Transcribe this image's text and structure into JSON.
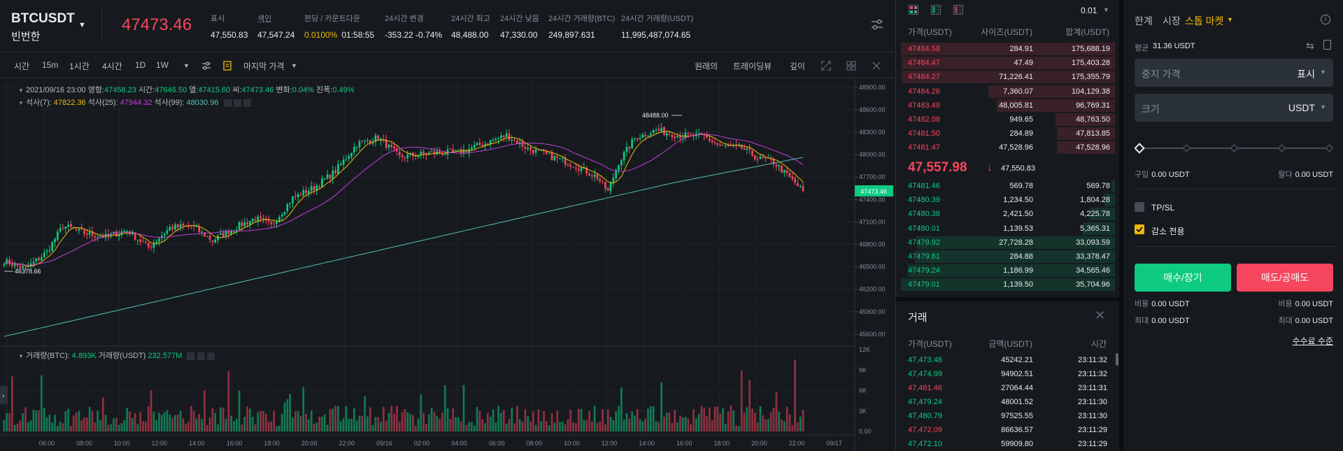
{
  "header": {
    "symbol": "BTCUSDT",
    "symbol_sub": "빈번한",
    "last_price": "47473.46",
    "stats": [
      {
        "label": "표시",
        "value": "47,550.83"
      },
      {
        "label": "색인",
        "value": "47,547.24"
      },
      {
        "label": "펀딩 / 카운트다운",
        "value": "0.0100%",
        "value2": "01:58:55"
      },
      {
        "label": "24시간 변경",
        "value": "-353.22 -0.74%"
      },
      {
        "label": "24시간 최고",
        "value": "48,488.00"
      },
      {
        "label": "24시간 낮음",
        "value": "47,330.00"
      },
      {
        "label": "24시간 거래량(BTC)",
        "value": "249,897.631"
      },
      {
        "label": "24시간 거래량(USDT)",
        "value": "11,995,487,074.65"
      }
    ]
  },
  "toolbar": {
    "intervals": [
      "시간",
      "15m",
      "1시간",
      "4시간",
      "1D",
      "1W"
    ],
    "price_type": "마지막 가격",
    "views": [
      "원래의",
      "트레이딩뷰",
      "깊이"
    ]
  },
  "chart_info": {
    "ohlc_label": "2021/09/16 23:00",
    "open_label": "영형:",
    "open": "47458.23",
    "high_label": "시간:",
    "high": "47646.50",
    "low_label": "열:",
    "low": "47415.60",
    "close_label": "씨:",
    "close": "47473.46",
    "change_label": "변화:",
    "change": "0.04%",
    "amp_label": "진폭:",
    "amp": "0.49%",
    "ma7_label": "석사(7):",
    "ma7": "47822.36",
    "ma25_label": "석사(25):",
    "ma25": "47944.32",
    "ma99_label": "석사(99):",
    "ma99": "48030.96",
    "vol_btc_label": "거래량(BTC):",
    "vol_btc": "4.893K",
    "vol_usdt_label": "거래량(USDT)",
    "vol_usdt": "232.577M",
    "max_label": "48488.00",
    "min_label": "46378.66",
    "price_tag": "47473.46"
  },
  "chart_data": {
    "type": "candlestick",
    "y_ticks": [
      "48900.00",
      "48600.00",
      "48300.00",
      "48000.00",
      "47700.00",
      "47400.00",
      "47100.00",
      "46800.00",
      "46500.00",
      "46200.00",
      "45900.00",
      "45600.00"
    ],
    "ylim": [
      45440,
      49020
    ],
    "vol_ticks": [
      "12K",
      "9K",
      "6K",
      "3K",
      "0.00"
    ],
    "vol_ylim": [
      0,
      12000
    ],
    "x_ticks": [
      "06:00",
      "08:00",
      "10:00",
      "12:00",
      "14:00",
      "16:00",
      "18:00",
      "20:00",
      "22:00",
      "09/16",
      "02:00",
      "04:00",
      "06:00",
      "08:00",
      "10:00",
      "12:00",
      "14:00",
      "16:00",
      "18:00",
      "20:00",
      "22:00",
      "09/17"
    ],
    "ma_colors": {
      "ma7": "#f0b90b",
      "ma25": "#c040d8",
      "ma99": "#56bfb4"
    },
    "anchors": [
      [
        0,
        46580
      ],
      [
        8,
        46470
      ],
      [
        16,
        46700
      ],
      [
        22,
        47050
      ],
      [
        30,
        46950
      ],
      [
        38,
        46900
      ],
      [
        46,
        46990
      ],
      [
        54,
        46760
      ],
      [
        62,
        47020
      ],
      [
        70,
        47050
      ],
      [
        78,
        46850
      ],
      [
        86,
        47020
      ],
      [
        94,
        47150
      ],
      [
        100,
        47050
      ],
      [
        108,
        47420
      ],
      [
        116,
        47560
      ],
      [
        124,
        47780
      ],
      [
        132,
        48140
      ],
      [
        140,
        48230
      ],
      [
        148,
        47970
      ],
      [
        160,
        48020
      ],
      [
        170,
        48030
      ],
      [
        180,
        48150
      ],
      [
        188,
        48260
      ],
      [
        196,
        48080
      ],
      [
        206,
        47960
      ],
      [
        214,
        47850
      ],
      [
        222,
        47700
      ],
      [
        226,
        47500
      ],
      [
        230,
        47900
      ],
      [
        236,
        48220
      ],
      [
        244,
        48330
      ],
      [
        252,
        48260
      ],
      [
        262,
        48240
      ],
      [
        268,
        48110
      ],
      [
        276,
        48090
      ],
      [
        282,
        47950
      ],
      [
        288,
        47900
      ],
      [
        296,
        47620
      ],
      [
        300,
        47470
      ]
    ],
    "candle_count": 300
  },
  "orderbook": {
    "precision": "0.01",
    "headers": [
      "가격(USDT)",
      "사이즈(USDT)",
      "합계(USDT)"
    ],
    "asks": [
      {
        "price": "47484.58",
        "size": "284.91",
        "total": "175,688.19",
        "depth": 1.0
      },
      {
        "price": "47484.47",
        "size": "47.49",
        "total": "175,403.28",
        "depth": 0.998
      },
      {
        "price": "47484.27",
        "size": "71,226.41",
        "total": "175,355.79",
        "depth": 0.998
      },
      {
        "price": "47484.26",
        "size": "7,360.07",
        "total": "104,129.38",
        "depth": 0.593
      },
      {
        "price": "47483.49",
        "size": "48,005.81",
        "total": "96,769.31",
        "depth": 0.551
      },
      {
        "price": "47482.08",
        "size": "949.65",
        "total": "48,763.50",
        "depth": 0.278
      },
      {
        "price": "47481.50",
        "size": "284.89",
        "total": "47,813.85",
        "depth": 0.272
      },
      {
        "price": "47481.47",
        "size": "47,528.96",
        "total": "47,528.96",
        "depth": 0.27
      }
    ],
    "mid_price": "47,557.98",
    "mark_price": "47,550.83",
    "bids": [
      {
        "price": "47481.46",
        "size": "569.78",
        "total": "569.78",
        "depth": 0.016
      },
      {
        "price": "47480.39",
        "size": "1,234.50",
        "total": "1,804.28",
        "depth": 0.05
      },
      {
        "price": "47480.38",
        "size": "2,421.50",
        "total": "4,225.78",
        "depth": 0.118
      },
      {
        "price": "47480.01",
        "size": "1,139.53",
        "total": "5,365.31",
        "depth": 0.15
      },
      {
        "price": "47479.92",
        "size": "27,728.28",
        "total": "33,093.59",
        "depth": 0.927
      },
      {
        "price": "47479.81",
        "size": "284.88",
        "total": "33,378.47",
        "depth": 0.935
      },
      {
        "price": "47479.24",
        "size": "1,186.99",
        "total": "34,565.46",
        "depth": 0.968
      },
      {
        "price": "47479.01",
        "size": "1,139.50",
        "total": "35,704.96",
        "depth": 1.0
      }
    ]
  },
  "trades": {
    "title": "거래",
    "headers": [
      "가격(USDT)",
      "금액(USDT)",
      "시간"
    ],
    "rows": [
      {
        "price": "47,473.46",
        "amount": "45242.21",
        "time": "23:11:32",
        "side": "buy"
      },
      {
        "price": "47,474.99",
        "amount": "94902.51",
        "time": "23:11:32",
        "side": "buy"
      },
      {
        "price": "47,481.46",
        "amount": "27064.44",
        "time": "23:11:31",
        "side": "sell"
      },
      {
        "price": "47,479.24",
        "amount": "48001.52",
        "time": "23:11:30",
        "side": "buy"
      },
      {
        "price": "47,480.79",
        "amount": "97525.55",
        "time": "23:11:30",
        "side": "buy"
      },
      {
        "price": "47,472.09",
        "amount": "86636.57",
        "time": "23:11:29",
        "side": "sell"
      },
      {
        "price": "47,472.10",
        "amount": "59909.80",
        "time": "23:11:29",
        "side": "buy"
      }
    ]
  },
  "order_form": {
    "tabs": [
      "한계",
      "시장",
      "스톱 마켓"
    ],
    "avbl_label": "평균",
    "avbl_value": "31.36 USDT",
    "stop_price_placeholder": "중지 가격",
    "stop_price_unit": "표시",
    "size_placeholder": "크기",
    "size_unit": "USDT",
    "buy_label": "구입",
    "buy_value": "0.00 USDT",
    "sell_label": "팔다",
    "sell_value": "0.00 USDT",
    "tpsl_label": "TP/SL",
    "reduce_only_label": "감소 전용",
    "buy_button": "매수/장기",
    "sell_button": "매도/공매도",
    "cost_label": "비용",
    "cost_buy": "0.00 USDT",
    "cost_sell": "0.00 USDT",
    "max_label": "최대",
    "max_buy": "0.00 USDT",
    "max_sell": "0.00 USDT",
    "fee_link": "수수료 수준"
  }
}
